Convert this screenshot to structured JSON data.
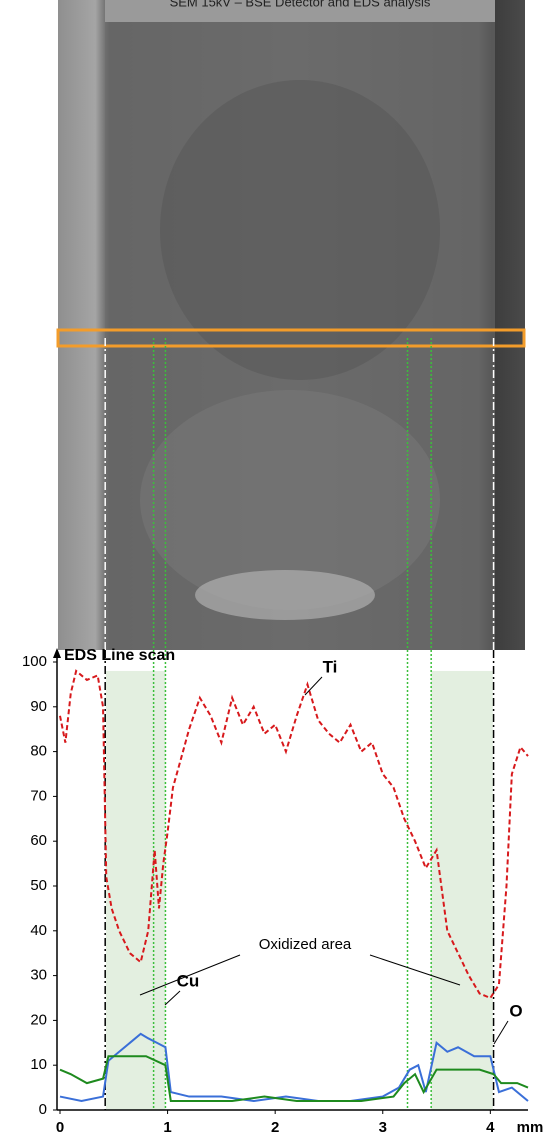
{
  "header": {
    "caption": "SEM 15kV – BSE Detector and EDS analysis"
  },
  "chart_data": {
    "type": "line",
    "title": "EDS Line scan",
    "xlabel": "mm",
    "xlim": [
      0,
      4.35
    ],
    "ylim": [
      0,
      100
    ],
    "xticks": [
      0,
      1,
      2,
      3,
      4
    ],
    "yticks": [
      0,
      10,
      20,
      30,
      40,
      50,
      60,
      70,
      80,
      90,
      100
    ],
    "highlight_spans": [
      [
        0.42,
        0.98
      ],
      [
        3.45,
        4.03
      ]
    ],
    "reference_lines": [
      0.42,
      0.87,
      0.98,
      3.23,
      3.45,
      4.03
    ],
    "annotations": [
      "Ti",
      "Cu",
      "O",
      "Oxidized area"
    ],
    "series": [
      {
        "name": "Ti",
        "color": "#d7191c",
        "dash": true,
        "x": [
          0,
          0.05,
          0.1,
          0.15,
          0.25,
          0.35,
          0.4,
          0.43,
          0.48,
          0.55,
          0.65,
          0.75,
          0.82,
          0.88,
          0.92,
          0.96,
          1.0,
          1.05,
          1.12,
          1.2,
          1.3,
          1.4,
          1.5,
          1.6,
          1.7,
          1.8,
          1.9,
          2.0,
          2.1,
          2.2,
          2.3,
          2.4,
          2.5,
          2.6,
          2.7,
          2.8,
          2.9,
          3.0,
          3.1,
          3.2,
          3.3,
          3.4,
          3.5,
          3.6,
          3.7,
          3.8,
          3.9,
          4.0,
          4.08,
          4.15,
          4.2,
          4.28,
          4.35
        ],
        "values": [
          88,
          82,
          93,
          98,
          96,
          97,
          90,
          52,
          45,
          40,
          35,
          33,
          40,
          58,
          45,
          55,
          62,
          72,
          78,
          85,
          92,
          88,
          82,
          92,
          86,
          90,
          84,
          86,
          80,
          88,
          95,
          87,
          84,
          82,
          86,
          80,
          82,
          75,
          72,
          65,
          60,
          54,
          58,
          40,
          35,
          30,
          26,
          25,
          28,
          50,
          75,
          81,
          79
        ]
      },
      {
        "name": "Cu",
        "color": "#3a6fd8",
        "x": [
          0,
          0.2,
          0.4,
          0.45,
          0.55,
          0.65,
          0.75,
          0.82,
          0.9,
          0.98,
          1.03,
          1.2,
          1.5,
          1.8,
          2.1,
          2.4,
          2.7,
          3.0,
          3.15,
          3.25,
          3.33,
          3.4,
          3.5,
          3.6,
          3.7,
          3.85,
          4.0,
          4.08,
          4.2,
          4.35
        ],
        "values": [
          3,
          2,
          3,
          11,
          13,
          15,
          17,
          16,
          15,
          14,
          4,
          3,
          3,
          2,
          3,
          2,
          2,
          3,
          5,
          9,
          10,
          4,
          15,
          13,
          14,
          12,
          12,
          4,
          5,
          2
        ]
      },
      {
        "name": "O",
        "color": "#1e8a1e",
        "x": [
          0,
          0.1,
          0.25,
          0.4,
          0.45,
          0.6,
          0.8,
          0.98,
          1.03,
          1.3,
          1.6,
          1.9,
          2.2,
          2.5,
          2.8,
          3.1,
          3.2,
          3.3,
          3.38,
          3.5,
          3.7,
          3.9,
          4.03,
          4.1,
          4.25,
          4.35
        ],
        "values": [
          9,
          8,
          6,
          7,
          12,
          12,
          12,
          10,
          2,
          2,
          2,
          3,
          2,
          2,
          2,
          3,
          6,
          8,
          4,
          9,
          9,
          9,
          8,
          6,
          6,
          5
        ]
      }
    ]
  }
}
